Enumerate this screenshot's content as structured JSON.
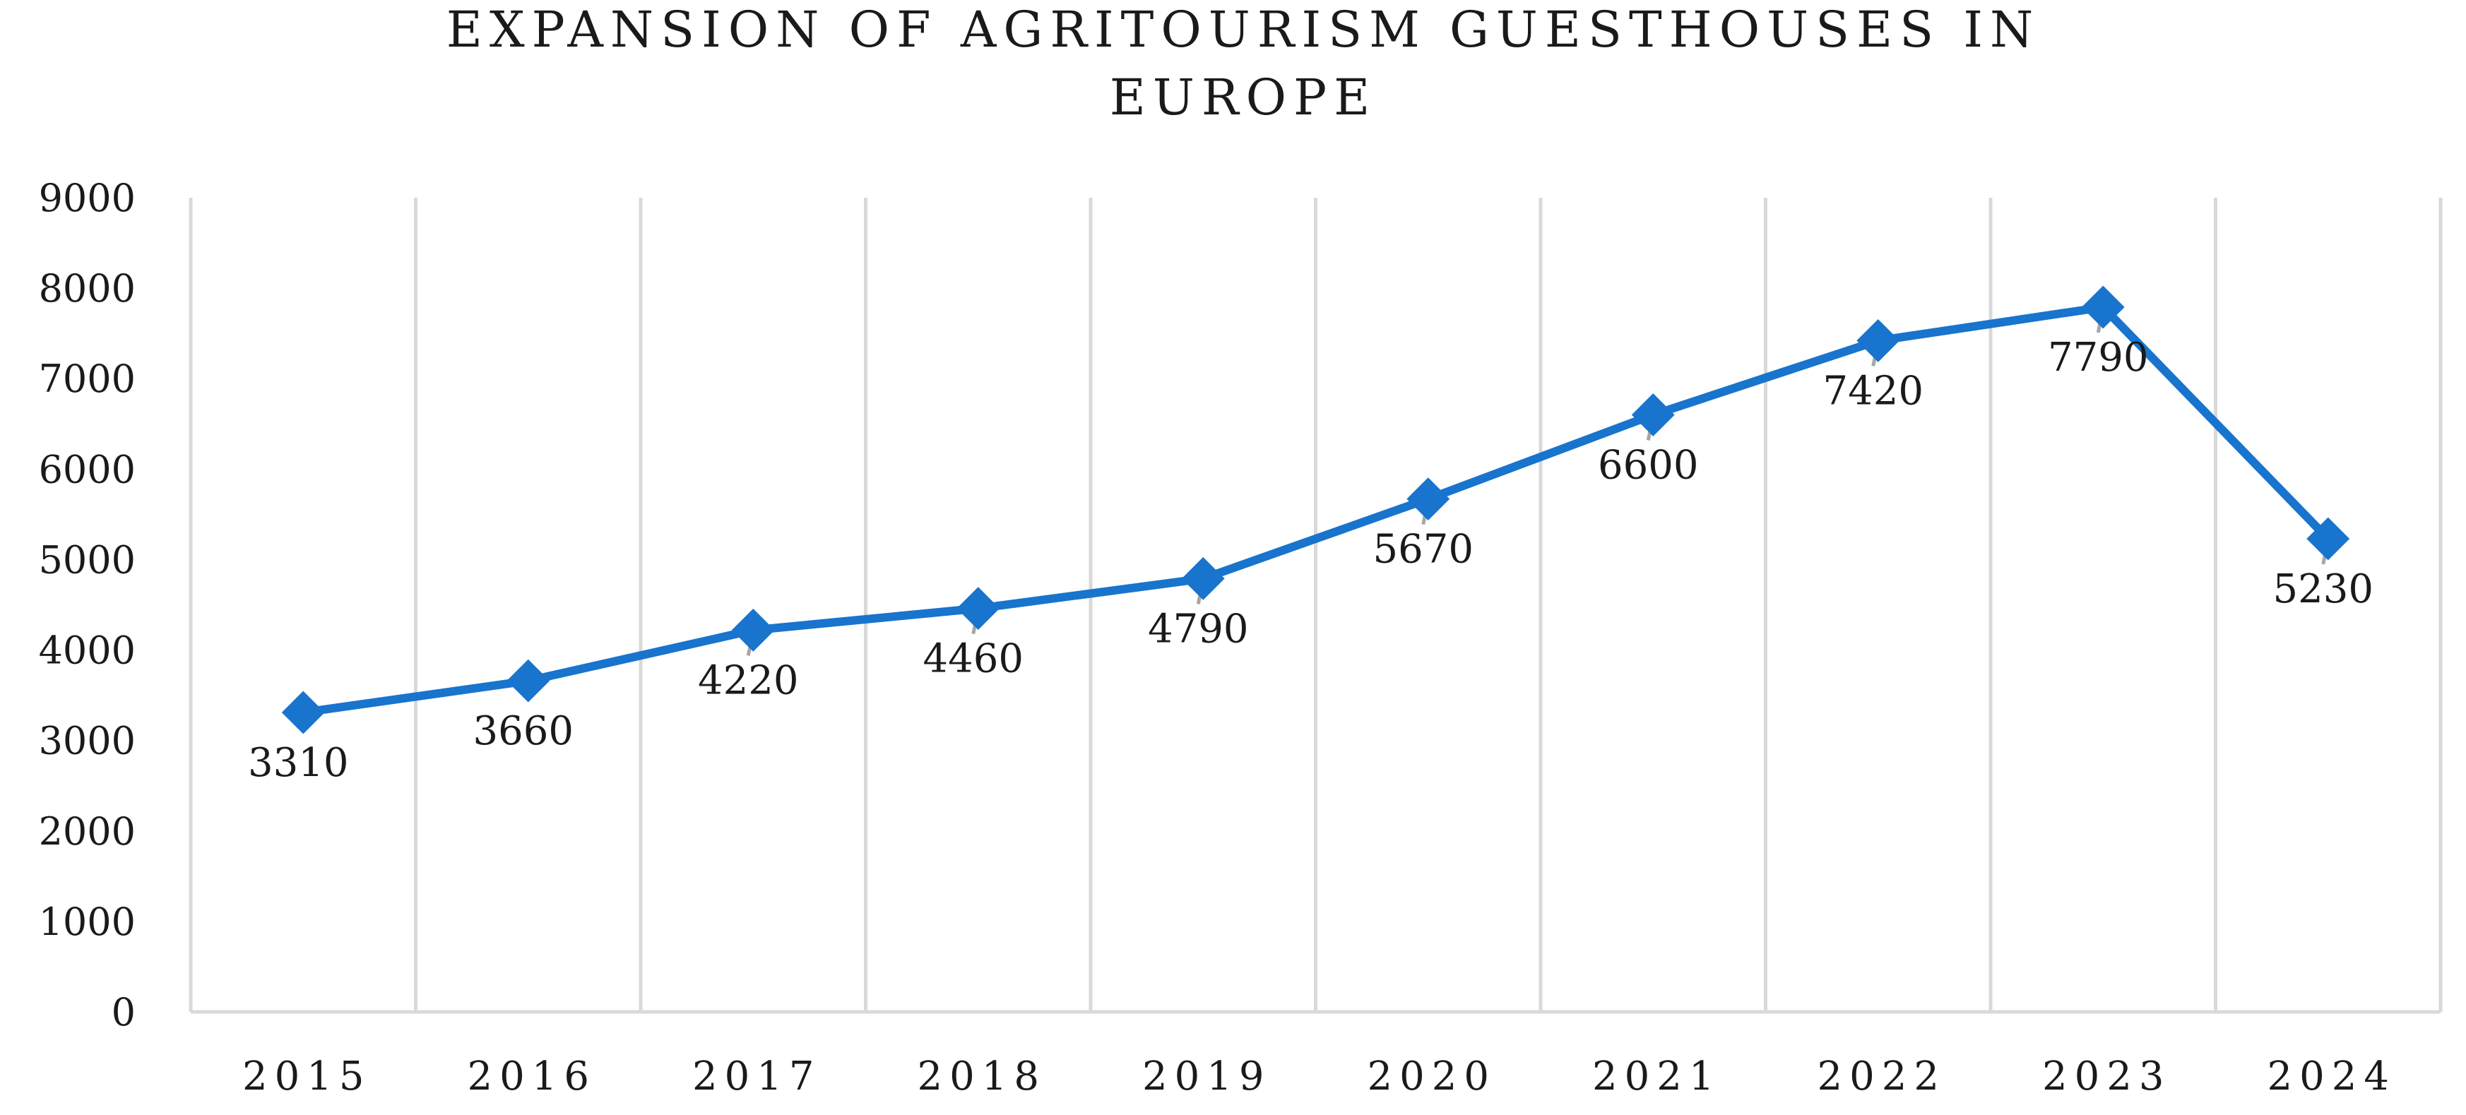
{
  "chart_data": {
    "type": "line",
    "title_lines": [
      "EXPANSION OF AGRITOURISM GUESTHOUSES IN",
      "EUROPE"
    ],
    "categories": [
      "2015",
      "2016",
      "2017",
      "2018",
      "2019",
      "2020",
      "2021",
      "2022",
      "2023",
      "2024"
    ],
    "series": [
      {
        "values": [
          3310,
          3660,
          4220,
          4460,
          4790,
          5670,
          6600,
          7420,
          7790,
          5230
        ],
        "color": "#1874cd",
        "marker": "diamond"
      }
    ],
    "y_ticks": [
      "0",
      "1000",
      "2000",
      "3000",
      "4000",
      "5000",
      "6000",
      "7000",
      "8000",
      "9000"
    ],
    "ylim": [
      0,
      9000
    ],
    "xlabel": "",
    "ylabel": "",
    "grid": "vertical",
    "legend": "none",
    "data_labels": "below"
  }
}
